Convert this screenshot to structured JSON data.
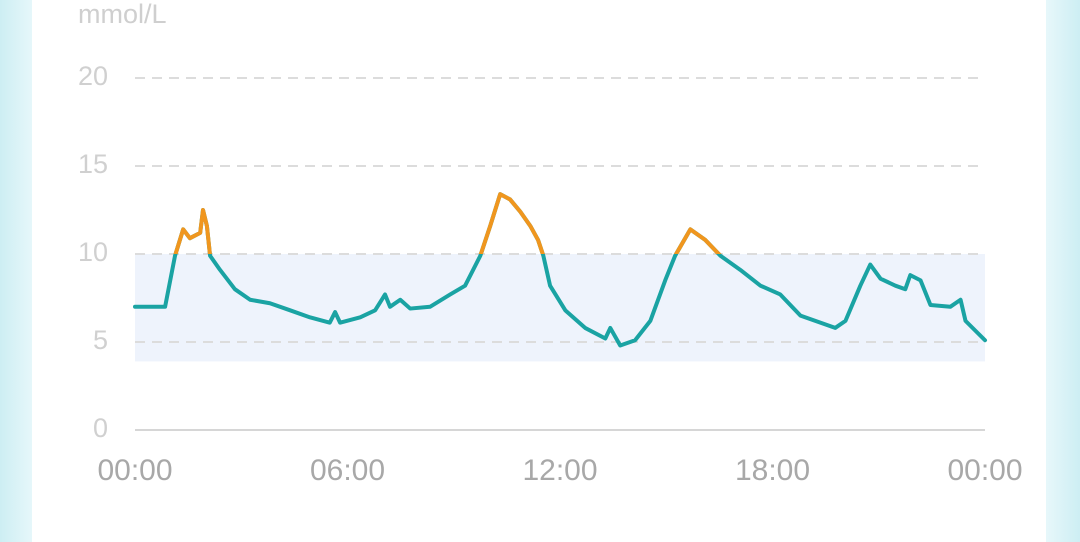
{
  "chart_data": {
    "type": "line",
    "y_label": "mmol/L",
    "xlim": [
      0,
      24
    ],
    "xticks": [
      {
        "value": 0,
        "label": "00:00"
      },
      {
        "value": 6,
        "label": "06:00"
      },
      {
        "value": 12,
        "label": "12:00"
      },
      {
        "value": 18,
        "label": "18:00"
      },
      {
        "value": 24,
        "label": "00:00"
      }
    ],
    "ylim": [
      0,
      20
    ],
    "yticks": [
      0,
      5,
      10,
      15,
      20
    ],
    "grid": true,
    "target_range": [
      3.9,
      10
    ],
    "target_color": "#eef3fc",
    "high_threshold": 10,
    "high_color": "#f0961e",
    "series": [
      {
        "color": "#1aa3a3",
        "x": [
          0,
          0.85,
          1.13,
          1.36,
          1.55,
          1.84,
          1.92,
          2.03,
          2.12,
          2.4,
          2.82,
          3.25,
          3.81,
          4.38,
          4.94,
          5.5,
          5.65,
          5.79,
          6.36,
          6.78,
          7.06,
          7.2,
          7.49,
          7.77,
          8.33,
          8.9,
          9.32,
          9.75,
          10.03,
          10.31,
          10.59,
          10.88,
          11.16,
          11.38,
          11.53,
          11.72,
          12.15,
          12.71,
          13.28,
          13.42,
          13.7,
          14.12,
          14.55,
          14.97,
          15.25,
          15.68,
          16.1,
          16.53,
          17.09,
          17.66,
          18.22,
          18.79,
          19.35,
          19.77,
          20.06,
          20.48,
          20.76,
          21.05,
          21.47,
          21.75,
          21.89,
          22.18,
          22.46,
          23.02,
          23.31,
          23.45,
          24
        ],
        "values": [
          7.0,
          7.0,
          9.9,
          11.4,
          10.9,
          11.2,
          12.5,
          11.6,
          9.9,
          9.1,
          8.0,
          7.4,
          7.2,
          6.8,
          6.4,
          6.1,
          6.7,
          6.1,
          6.4,
          6.8,
          7.7,
          7.0,
          7.4,
          6.9,
          7.0,
          7.7,
          8.2,
          9.9,
          11.6,
          13.4,
          13.1,
          12.4,
          11.6,
          10.8,
          9.9,
          8.2,
          6.8,
          5.8,
          5.2,
          5.8,
          4.8,
          5.1,
          6.2,
          8.5,
          9.9,
          11.4,
          10.8,
          9.9,
          9.1,
          8.2,
          7.7,
          6.5,
          6.1,
          5.8,
          6.2,
          8.2,
          9.4,
          8.6,
          8.2,
          8.0,
          8.8,
          8.5,
          7.1,
          7.0,
          7.4,
          6.2,
          5.1
        ]
      }
    ]
  }
}
